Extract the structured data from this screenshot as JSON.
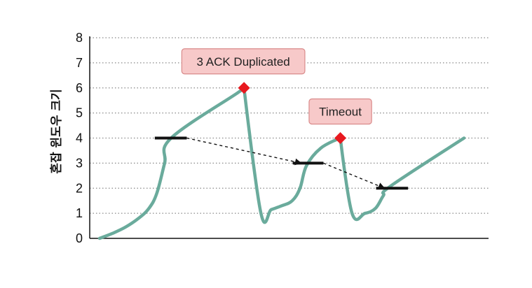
{
  "chart_data": {
    "type": "line",
    "title": "",
    "xlabel": "",
    "ylabel": "혼잡 윈도우 크기",
    "ylim": [
      0,
      8
    ],
    "yticks": [
      0,
      1,
      2,
      3,
      4,
      5,
      6,
      7,
      8
    ],
    "grid": "horizontal-dotted",
    "colors": {
      "line": "#6aab9c",
      "peak_marker": "#e8191f",
      "threshold": "#111111",
      "callout_fill": "#f7c9c9",
      "callout_border": "#d98a8a"
    },
    "series": [
      {
        "values_xy": [
          [
            0.0,
            0.0
          ],
          [
            0.5,
            0.2
          ],
          [
            1.0,
            0.45
          ],
          [
            1.5,
            0.8
          ],
          [
            1.9,
            1.2
          ],
          [
            2.2,
            1.8
          ],
          [
            2.5,
            3.0
          ],
          [
            2.75,
            4.0
          ],
          [
            5.3,
            5.8
          ],
          [
            5.55,
            6.0
          ],
          [
            6.2,
            1.0
          ],
          [
            6.6,
            1.15
          ],
          [
            7.0,
            1.3
          ],
          [
            7.4,
            1.5
          ],
          [
            7.7,
            2.0
          ],
          [
            7.95,
            2.9
          ],
          [
            8.5,
            3.6
          ],
          [
            9.25,
            4.0
          ],
          [
            9.7,
            1.0
          ],
          [
            10.2,
            1.0
          ],
          [
            10.6,
            1.2
          ],
          [
            10.9,
            1.7
          ],
          [
            11.2,
            2.1
          ],
          [
            14.0,
            4.0
          ]
        ]
      }
    ],
    "peaks": [
      {
        "x": 5.55,
        "y": 6.0,
        "label": "3 ACK Duplicated"
      },
      {
        "x": 9.25,
        "y": 4.0,
        "label": "Timeout"
      }
    ],
    "thresholds": [
      {
        "x_start": 2.5,
        "x_end": 3.35,
        "y": 4.0
      },
      {
        "x_start": 7.8,
        "x_end": 8.6,
        "y": 3.0
      },
      {
        "x_start": 11.0,
        "x_end": 11.85,
        "y": 2.0
      }
    ],
    "arrows": [
      {
        "from": [
          3.35,
          4.0
        ],
        "to": [
          7.8,
          3.0
        ]
      },
      {
        "from": [
          8.6,
          3.0
        ],
        "to": [
          11.0,
          2.0
        ]
      }
    ]
  }
}
